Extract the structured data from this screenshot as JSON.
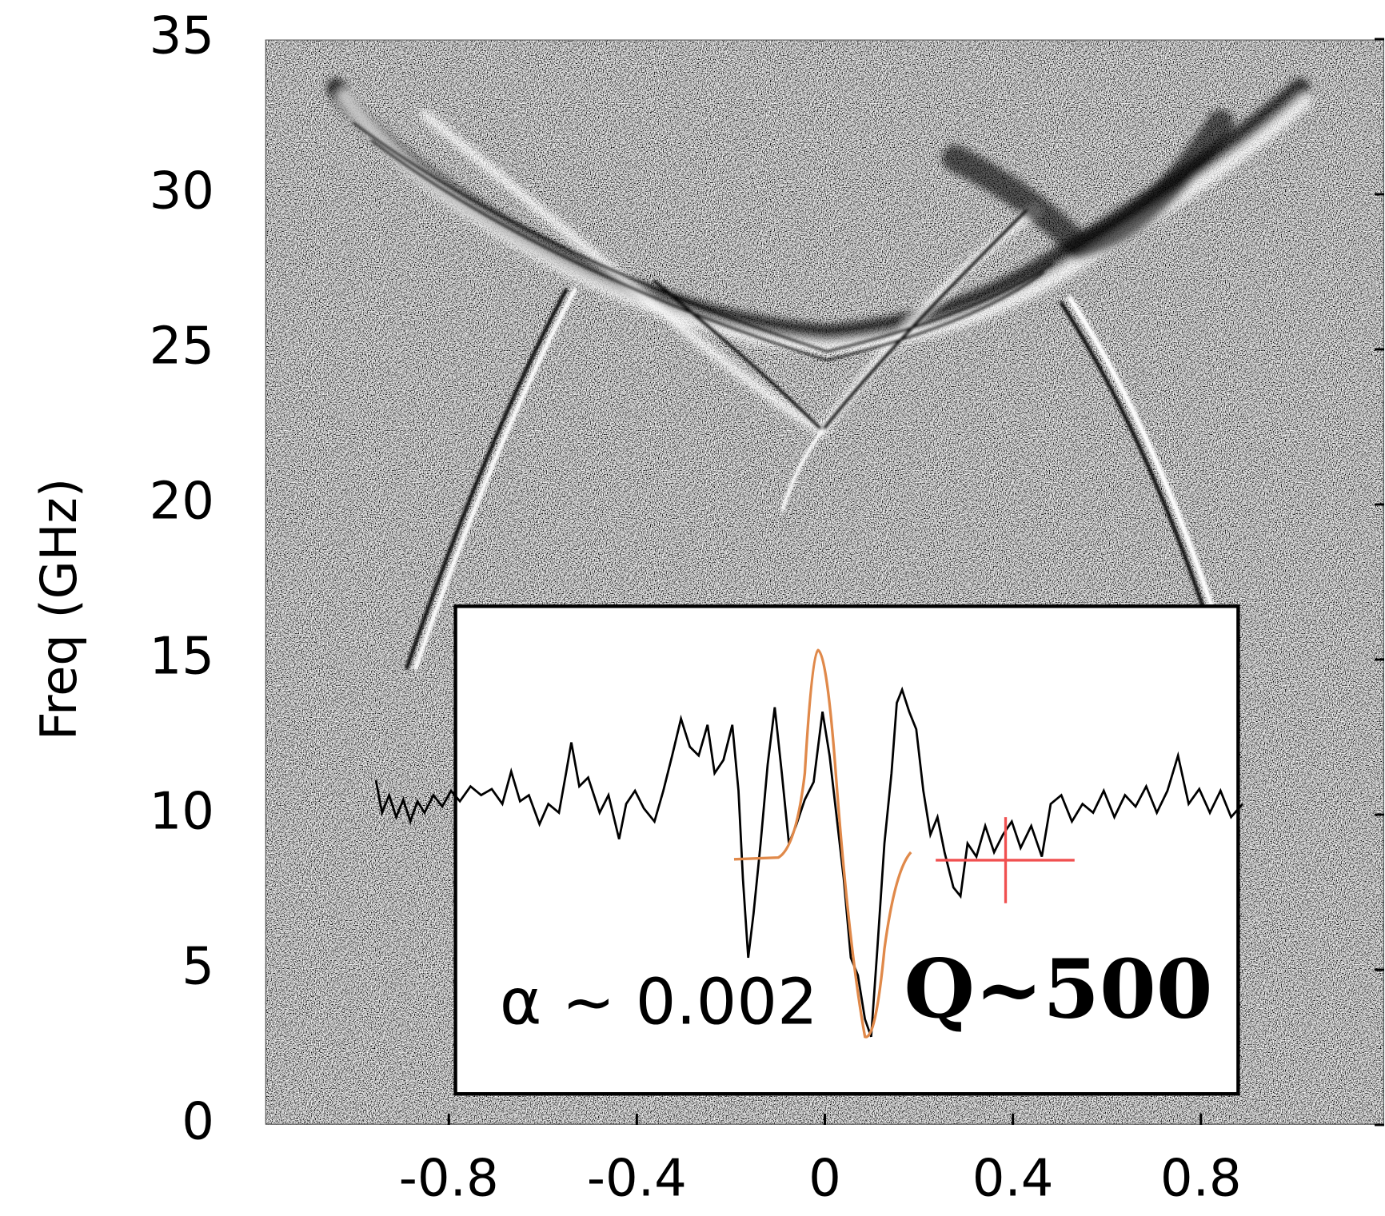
{
  "chart_data": {
    "type": "image",
    "ylabel": "Freq (GHz)",
    "ylim": [
      0,
      35
    ],
    "yticks": [
      0,
      5,
      10,
      15,
      20,
      25,
      30,
      35
    ],
    "xlim": [
      -1.19,
      1.19
    ],
    "xticks": [
      -0.8,
      -0.4,
      0,
      0.4,
      0.8
    ],
    "annotations": [
      "α ~ 0.002",
      "Q~500"
    ]
  }
}
